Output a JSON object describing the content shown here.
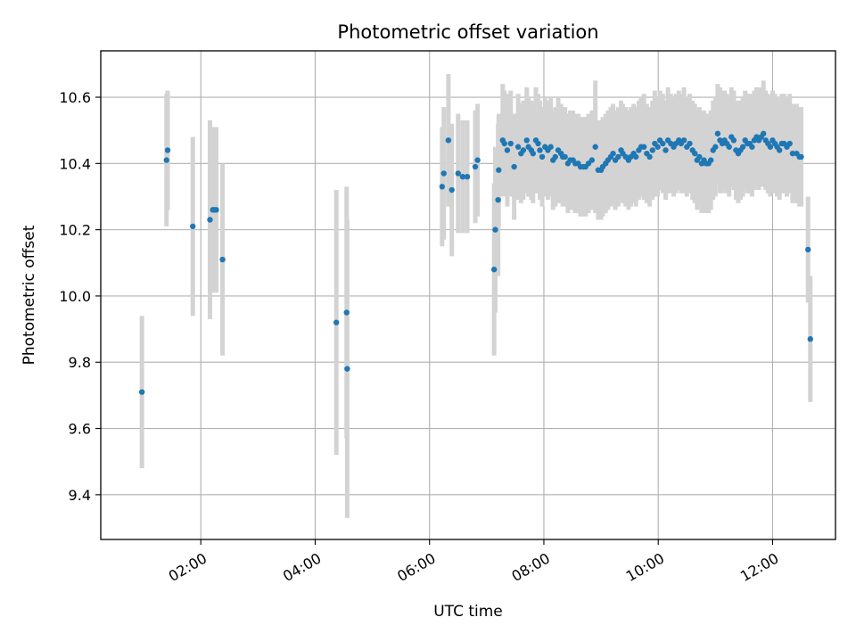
{
  "chart_data": {
    "type": "scatter",
    "title": "Photometric offset variation",
    "xlabel": "UTC time",
    "ylabel": "Photometric offset",
    "x_unit": "hours UTC",
    "xlim": [
      0.25,
      13.1
    ],
    "ylim": [
      9.265,
      10.74
    ],
    "xticks": [
      {
        "value": 2,
        "label": "02:00"
      },
      {
        "value": 4,
        "label": "04:00"
      },
      {
        "value": 6,
        "label": "06:00"
      },
      {
        "value": 8,
        "label": "08:00"
      },
      {
        "value": 10,
        "label": "10:00"
      },
      {
        "value": 12,
        "label": "12:00"
      }
    ],
    "yticks": [
      {
        "value": 9.4,
        "label": "9.4"
      },
      {
        "value": 9.6,
        "label": "9.6"
      },
      {
        "value": 9.8,
        "label": "9.8"
      },
      {
        "value": 10.0,
        "label": "10.0"
      },
      {
        "value": 10.2,
        "label": "10.2"
      },
      {
        "value": 10.4,
        "label": "10.4"
      },
      {
        "value": 10.6,
        "label": "10.6"
      }
    ],
    "grid": true,
    "colors": {
      "point": "#1f77b4",
      "errorbar": "#d3d3d3",
      "grid": "#b0b0b0"
    },
    "series": [
      {
        "x": [
          0.97,
          1.4,
          1.42,
          1.86,
          2.16,
          2.21,
          2.24,
          2.27,
          2.38,
          4.37,
          4.55,
          4.56,
          6.22,
          6.25,
          6.33,
          6.39,
          6.5,
          6.58,
          6.66,
          6.8,
          6.84,
          7.13,
          7.15,
          7.2,
          7.21,
          7.28,
          7.31,
          7.36,
          7.42,
          7.48,
          7.55,
          7.6,
          7.64,
          7.7,
          7.73,
          7.78,
          7.81,
          7.86,
          7.9,
          7.93,
          7.97,
          8.02,
          8.07,
          8.12,
          8.16,
          8.2,
          8.25,
          8.3,
          8.33,
          8.37,
          8.42,
          8.46,
          8.51,
          8.55,
          8.6,
          8.64,
          8.69,
          8.73,
          8.78,
          8.84,
          8.9,
          8.95,
          9.0,
          9.03,
          9.08,
          9.12,
          9.17,
          9.21,
          9.25,
          9.3,
          9.35,
          9.38,
          9.43,
          9.48,
          9.52,
          9.57,
          9.61,
          9.66,
          9.7,
          9.75,
          9.8,
          9.85,
          9.9,
          9.94,
          9.99,
          10.03,
          10.08,
          10.13,
          10.17,
          10.22,
          10.27,
          10.31,
          10.36,
          10.4,
          10.45,
          10.5,
          10.55,
          10.6,
          10.64,
          10.68,
          10.72,
          10.76,
          10.8,
          10.84,
          10.88,
          10.92,
          10.96,
          11.0,
          11.04,
          11.08,
          11.12,
          11.16,
          11.2,
          11.24,
          11.28,
          11.32,
          11.36,
          11.4,
          11.44,
          11.48,
          11.52,
          11.56,
          11.6,
          11.64,
          11.68,
          11.72,
          11.76,
          11.8,
          11.84,
          11.88,
          11.92,
          11.96,
          12.0,
          12.04,
          12.08,
          12.12,
          12.16,
          12.2,
          12.25,
          12.3,
          12.35,
          12.42,
          12.47,
          12.5,
          12.62,
          12.66
        ],
        "y": [
          9.71,
          10.41,
          10.44,
          10.21,
          10.23,
          10.26,
          10.26,
          10.26,
          10.11,
          9.92,
          9.95,
          9.78,
          10.33,
          10.37,
          10.47,
          10.32,
          10.37,
          10.36,
          10.36,
          10.39,
          10.41,
          10.08,
          10.2,
          10.29,
          10.38,
          10.47,
          10.46,
          10.44,
          10.46,
          10.39,
          10.45,
          10.43,
          10.44,
          10.47,
          10.45,
          10.44,
          10.43,
          10.47,
          10.46,
          10.44,
          10.42,
          10.45,
          10.44,
          10.45,
          10.41,
          10.42,
          10.44,
          10.43,
          10.42,
          10.42,
          10.4,
          10.41,
          10.41,
          10.4,
          10.4,
          10.39,
          10.39,
          10.39,
          10.4,
          10.41,
          10.45,
          10.38,
          10.38,
          10.39,
          10.4,
          10.41,
          10.42,
          10.43,
          10.41,
          10.42,
          10.44,
          10.43,
          10.42,
          10.41,
          10.42,
          10.43,
          10.42,
          10.44,
          10.45,
          10.45,
          10.43,
          10.42,
          10.44,
          10.46,
          10.45,
          10.47,
          10.46,
          10.44,
          10.47,
          10.46,
          10.45,
          10.46,
          10.47,
          10.46,
          10.47,
          10.45,
          10.46,
          10.44,
          10.43,
          10.41,
          10.42,
          10.4,
          10.41,
          10.4,
          10.4,
          10.41,
          10.44,
          10.45,
          10.49,
          10.47,
          10.46,
          10.47,
          10.46,
          10.45,
          10.48,
          10.47,
          10.44,
          10.43,
          10.44,
          10.45,
          10.47,
          10.46,
          10.46,
          10.45,
          10.47,
          10.48,
          10.47,
          10.48,
          10.49,
          10.47,
          10.46,
          10.45,
          10.47,
          10.46,
          10.45,
          10.44,
          10.46,
          10.46,
          10.45,
          10.46,
          10.43,
          10.43,
          10.42,
          10.42,
          10.14,
          9.87
        ],
        "yerr": [
          0.23,
          0.2,
          0.18,
          0.27,
          0.3,
          0.25,
          0.25,
          0.25,
          0.29,
          0.4,
          0.38,
          0.45,
          0.18,
          0.2,
          0.2,
          0.2,
          0.18,
          0.17,
          0.17,
          0.17,
          0.17,
          0.26,
          0.25,
          0.23,
          0.17,
          0.17,
          0.16,
          0.17,
          0.16,
          0.16,
          0.16,
          0.15,
          0.15,
          0.16,
          0.15,
          0.15,
          0.15,
          0.16,
          0.15,
          0.15,
          0.15,
          0.15,
          0.15,
          0.15,
          0.15,
          0.15,
          0.16,
          0.15,
          0.15,
          0.15,
          0.15,
          0.15,
          0.15,
          0.15,
          0.15,
          0.15,
          0.15,
          0.15,
          0.15,
          0.15,
          0.2,
          0.15,
          0.15,
          0.15,
          0.15,
          0.15,
          0.15,
          0.15,
          0.15,
          0.15,
          0.15,
          0.15,
          0.15,
          0.15,
          0.15,
          0.15,
          0.15,
          0.15,
          0.15,
          0.16,
          0.15,
          0.15,
          0.15,
          0.16,
          0.15,
          0.15,
          0.15,
          0.15,
          0.16,
          0.15,
          0.15,
          0.15,
          0.15,
          0.15,
          0.16,
          0.15,
          0.15,
          0.15,
          0.15,
          0.15,
          0.15,
          0.15,
          0.15,
          0.15,
          0.15,
          0.15,
          0.15,
          0.15,
          0.15,
          0.16,
          0.15,
          0.15,
          0.15,
          0.15,
          0.15,
          0.15,
          0.15,
          0.15,
          0.15,
          0.15,
          0.15,
          0.15,
          0.15,
          0.15,
          0.15,
          0.15,
          0.15,
          0.15,
          0.16,
          0.15,
          0.15,
          0.15,
          0.15,
          0.15,
          0.15,
          0.15,
          0.15,
          0.15,
          0.15,
          0.15,
          0.15,
          0.15,
          0.15,
          0.15,
          0.16,
          0.19
        ]
      }
    ]
  }
}
